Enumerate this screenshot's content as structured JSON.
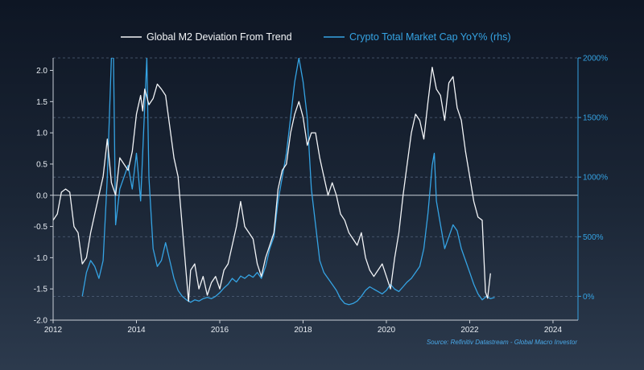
{
  "chart_data": {
    "type": "line",
    "title": "",
    "source": "Source: Refinitiv Datastream - Global Macro Investor",
    "x_ticks": [
      "2012",
      "2014",
      "2016",
      "2018",
      "2020",
      "2022",
      "2024"
    ],
    "xlim": [
      2012,
      2024.6
    ],
    "left_axis": {
      "ylim": [
        -2.0,
        2.2
      ],
      "ticks": [
        "-2.0",
        "-1.5",
        "-1.0",
        "-0.5",
        "0.0",
        "0.5",
        "1.0",
        "1.5",
        "2.0"
      ],
      "tick_values": [
        -2.0,
        -1.5,
        -1.0,
        -0.5,
        0.0,
        0.5,
        1.0,
        1.5,
        2.0
      ]
    },
    "right_axis": {
      "ylim": [
        -200,
        2000
      ],
      "ticks": [
        "0%",
        "500%",
        "1000%",
        "1500%",
        "2000%"
      ],
      "tick_values": [
        0,
        500,
        1000,
        1500,
        2000
      ]
    },
    "series": [
      {
        "name": "Global M2 Deviation From Trend",
        "axis": "left",
        "color": "#f2f4f7",
        "points": [
          [
            2012.0,
            -0.4
          ],
          [
            2012.1,
            -0.3
          ],
          [
            2012.2,
            0.05
          ],
          [
            2012.3,
            0.1
          ],
          [
            2012.4,
            0.05
          ],
          [
            2012.5,
            -0.5
          ],
          [
            2012.6,
            -0.6
          ],
          [
            2012.7,
            -1.1
          ],
          [
            2012.8,
            -1.0
          ],
          [
            2012.9,
            -0.6
          ],
          [
            2013.0,
            -0.3
          ],
          [
            2013.1,
            0.0
          ],
          [
            2013.2,
            0.3
          ],
          [
            2013.3,
            0.9
          ],
          [
            2013.4,
            0.2
          ],
          [
            2013.5,
            0.0
          ],
          [
            2013.6,
            0.6
          ],
          [
            2013.7,
            0.5
          ],
          [
            2013.8,
            0.4
          ],
          [
            2013.9,
            0.7
          ],
          [
            2014.0,
            1.3
          ],
          [
            2014.1,
            1.6
          ],
          [
            2014.15,
            1.35
          ],
          [
            2014.2,
            1.7
          ],
          [
            2014.3,
            1.45
          ],
          [
            2014.4,
            1.55
          ],
          [
            2014.5,
            1.78
          ],
          [
            2014.6,
            1.7
          ],
          [
            2014.7,
            1.6
          ],
          [
            2014.8,
            1.1
          ],
          [
            2014.9,
            0.6
          ],
          [
            2015.0,
            0.3
          ],
          [
            2015.1,
            -0.5
          ],
          [
            2015.2,
            -1.3
          ],
          [
            2015.25,
            -1.7
          ],
          [
            2015.3,
            -1.2
          ],
          [
            2015.4,
            -1.1
          ],
          [
            2015.5,
            -1.5
          ],
          [
            2015.6,
            -1.3
          ],
          [
            2015.7,
            -1.6
          ],
          [
            2015.8,
            -1.4
          ],
          [
            2015.9,
            -1.3
          ],
          [
            2016.0,
            -1.5
          ],
          [
            2016.1,
            -1.2
          ],
          [
            2016.2,
            -1.1
          ],
          [
            2016.3,
            -0.8
          ],
          [
            2016.4,
            -0.5
          ],
          [
            2016.5,
            -0.1
          ],
          [
            2016.6,
            -0.5
          ],
          [
            2016.7,
            -0.6
          ],
          [
            2016.8,
            -0.7
          ],
          [
            2016.9,
            -1.1
          ],
          [
            2017.0,
            -1.3
          ],
          [
            2017.1,
            -1.0
          ],
          [
            2017.2,
            -0.8
          ],
          [
            2017.3,
            -0.6
          ],
          [
            2017.4,
            0.1
          ],
          [
            2017.5,
            0.4
          ],
          [
            2017.6,
            0.5
          ],
          [
            2017.7,
            1.0
          ],
          [
            2017.8,
            1.3
          ],
          [
            2017.9,
            1.5
          ],
          [
            2018.0,
            1.25
          ],
          [
            2018.1,
            0.8
          ],
          [
            2018.2,
            1.0
          ],
          [
            2018.3,
            1.0
          ],
          [
            2018.4,
            0.6
          ],
          [
            2018.5,
            0.3
          ],
          [
            2018.6,
            0.0
          ],
          [
            2018.7,
            0.2
          ],
          [
            2018.8,
            0.0
          ],
          [
            2018.9,
            -0.3
          ],
          [
            2019.0,
            -0.4
          ],
          [
            2019.1,
            -0.6
          ],
          [
            2019.2,
            -0.7
          ],
          [
            2019.3,
            -0.8
          ],
          [
            2019.4,
            -0.6
          ],
          [
            2019.5,
            -1.0
          ],
          [
            2019.6,
            -1.2
          ],
          [
            2019.7,
            -1.3
          ],
          [
            2019.8,
            -1.2
          ],
          [
            2019.9,
            -1.1
          ],
          [
            2020.0,
            -1.3
          ],
          [
            2020.1,
            -1.5
          ],
          [
            2020.2,
            -1.0
          ],
          [
            2020.3,
            -0.6
          ],
          [
            2020.4,
            0.0
          ],
          [
            2020.5,
            0.5
          ],
          [
            2020.6,
            1.0
          ],
          [
            2020.7,
            1.3
          ],
          [
            2020.8,
            1.2
          ],
          [
            2020.9,
            0.9
          ],
          [
            2021.0,
            1.5
          ],
          [
            2021.1,
            2.05
          ],
          [
            2021.2,
            1.7
          ],
          [
            2021.3,
            1.6
          ],
          [
            2021.4,
            1.2
          ],
          [
            2021.5,
            1.8
          ],
          [
            2021.6,
            1.9
          ],
          [
            2021.7,
            1.4
          ],
          [
            2021.8,
            1.2
          ],
          [
            2021.9,
            0.7
          ],
          [
            2022.0,
            0.3
          ],
          [
            2022.1,
            -0.1
          ],
          [
            2022.2,
            -0.35
          ],
          [
            2022.3,
            -0.4
          ],
          [
            2022.38,
            -1.55
          ],
          [
            2022.43,
            -1.65
          ],
          [
            2022.5,
            -1.25
          ]
        ]
      },
      {
        "name": "Crypto Total Market Cap YoY% (rhs)",
        "axis": "right",
        "color": "#35a3e3",
        "points": [
          [
            2012.7,
            0
          ],
          [
            2012.8,
            200
          ],
          [
            2012.9,
            300
          ],
          [
            2013.0,
            250
          ],
          [
            2013.1,
            150
          ],
          [
            2013.2,
            300
          ],
          [
            2013.3,
            1000
          ],
          [
            2013.4,
            2000
          ],
          [
            2013.45,
            2000
          ],
          [
            2013.5,
            600
          ],
          [
            2013.6,
            900
          ],
          [
            2013.7,
            1000
          ],
          [
            2013.8,
            1100
          ],
          [
            2013.9,
            900
          ],
          [
            2014.0,
            1200
          ],
          [
            2014.1,
            800
          ],
          [
            2014.2,
            1600
          ],
          [
            2014.25,
            2000
          ],
          [
            2014.3,
            1000
          ],
          [
            2014.4,
            400
          ],
          [
            2014.5,
            250
          ],
          [
            2014.6,
            300
          ],
          [
            2014.7,
            450
          ],
          [
            2014.8,
            300
          ],
          [
            2014.9,
            150
          ],
          [
            2015.0,
            50
          ],
          [
            2015.1,
            0
          ],
          [
            2015.2,
            -30
          ],
          [
            2015.3,
            -50
          ],
          [
            2015.4,
            -30
          ],
          [
            2015.5,
            -40
          ],
          [
            2015.6,
            -20
          ],
          [
            2015.7,
            -10
          ],
          [
            2015.8,
            -20
          ],
          [
            2015.9,
            0
          ],
          [
            2016.0,
            30
          ],
          [
            2016.1,
            70
          ],
          [
            2016.2,
            100
          ],
          [
            2016.3,
            150
          ],
          [
            2016.4,
            120
          ],
          [
            2016.5,
            170
          ],
          [
            2016.6,
            150
          ],
          [
            2016.7,
            180
          ],
          [
            2016.8,
            160
          ],
          [
            2016.9,
            200
          ],
          [
            2017.0,
            150
          ],
          [
            2017.1,
            250
          ],
          [
            2017.2,
            400
          ],
          [
            2017.3,
            500
          ],
          [
            2017.4,
            800
          ],
          [
            2017.5,
            1000
          ],
          [
            2017.6,
            1200
          ],
          [
            2017.7,
            1500
          ],
          [
            2017.8,
            1800
          ],
          [
            2017.9,
            2000
          ],
          [
            2018.0,
            1800
          ],
          [
            2018.1,
            1500
          ],
          [
            2018.2,
            900
          ],
          [
            2018.3,
            600
          ],
          [
            2018.4,
            300
          ],
          [
            2018.5,
            200
          ],
          [
            2018.6,
            150
          ],
          [
            2018.7,
            100
          ],
          [
            2018.8,
            50
          ],
          [
            2018.9,
            -20
          ],
          [
            2019.0,
            -60
          ],
          [
            2019.1,
            -70
          ],
          [
            2019.2,
            -60
          ],
          [
            2019.3,
            -40
          ],
          [
            2019.4,
            0
          ],
          [
            2019.5,
            50
          ],
          [
            2019.6,
            80
          ],
          [
            2019.7,
            60
          ],
          [
            2019.8,
            40
          ],
          [
            2019.9,
            20
          ],
          [
            2020.0,
            50
          ],
          [
            2020.1,
            100
          ],
          [
            2020.2,
            60
          ],
          [
            2020.3,
            40
          ],
          [
            2020.4,
            80
          ],
          [
            2020.5,
            120
          ],
          [
            2020.6,
            150
          ],
          [
            2020.7,
            200
          ],
          [
            2020.8,
            250
          ],
          [
            2020.9,
            400
          ],
          [
            2021.0,
            700
          ],
          [
            2021.1,
            1100
          ],
          [
            2021.15,
            1200
          ],
          [
            2021.2,
            800
          ],
          [
            2021.3,
            600
          ],
          [
            2021.4,
            400
          ],
          [
            2021.5,
            500
          ],
          [
            2021.6,
            600
          ],
          [
            2021.7,
            550
          ],
          [
            2021.8,
            400
          ],
          [
            2021.9,
            300
          ],
          [
            2022.0,
            200
          ],
          [
            2022.1,
            100
          ],
          [
            2022.2,
            20
          ],
          [
            2022.3,
            -30
          ],
          [
            2022.4,
            0
          ],
          [
            2022.5,
            -20
          ],
          [
            2022.6,
            -10
          ]
        ]
      }
    ]
  }
}
